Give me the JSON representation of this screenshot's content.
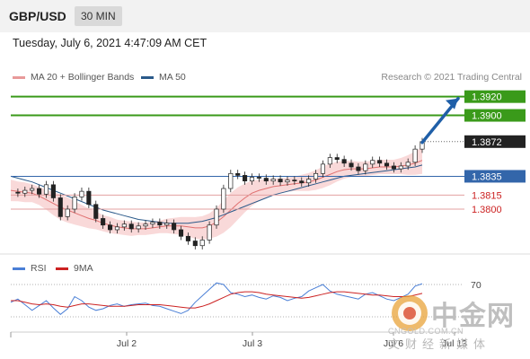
{
  "header": {
    "pair": "GBP/USD",
    "timeframe": "30 MIN"
  },
  "timestamp": "Tuesday, July 6, 2021 4:47:09 AM CET",
  "legend": {
    "ma20": "MA 20 + Bollinger Bands",
    "ma50": "MA 50"
  },
  "credit": "Research © 2021 Trading Central",
  "rsi_legend": {
    "rsi": "RSI",
    "ma9": "9MA"
  },
  "watermark": {
    "cn": "中金网",
    "en": "CNGOLD.COM.CN",
    "sub": "文财经新媒体"
  },
  "colors": {
    "resistance": "#3a9a1a",
    "support": "#3366aa",
    "support_minor": "#cc2222",
    "current": "#333333",
    "arrow": "#1f5fa8"
  },
  "chart_data": {
    "type": "candlestick",
    "x_ticks": [
      "Jul 2",
      "Jul 3",
      "Jul 6",
      "Jul 13"
    ],
    "levels": [
      {
        "value": 1.392,
        "label": "1.3920",
        "kind": "resistance"
      },
      {
        "value": 1.39,
        "label": "1.3900",
        "kind": "resistance"
      },
      {
        "value": 1.3872,
        "label": "1.3872",
        "kind": "current"
      },
      {
        "value": 1.3835,
        "label": "1.3835",
        "kind": "pivot"
      },
      {
        "value": 1.3815,
        "label": "1.3815",
        "kind": "support"
      },
      {
        "value": 1.38,
        "label": "1.3800",
        "kind": "support"
      }
    ],
    "price_path": [
      1.3818,
      1.3817,
      1.382,
      1.3822,
      1.3816,
      1.3826,
      1.3812,
      1.3792,
      1.38,
      1.3813,
      1.3819,
      1.3805,
      1.379,
      1.3783,
      1.3778,
      1.3781,
      1.3784,
      1.3779,
      1.3782,
      1.3784,
      1.3786,
      1.3783,
      1.3785,
      1.3778,
      1.3771,
      1.3766,
      1.3761,
      1.3767,
      1.3783,
      1.38,
      1.3822,
      1.3838,
      1.3836,
      1.383,
      1.3834,
      1.3833,
      1.383,
      1.3832,
      1.3829,
      1.3831,
      1.383,
      1.3828,
      1.3832,
      1.3838,
      1.3848,
      1.3855,
      1.3853,
      1.3849,
      1.3845,
      1.3841,
      1.3848,
      1.3852,
      1.3849,
      1.3846,
      1.3843,
      1.3846,
      1.385,
      1.3864,
      1.3872
    ],
    "ma20": [
      1.382,
      1.3819,
      1.3818,
      1.3817,
      1.3814,
      1.381,
      1.3806,
      1.3802,
      1.3799,
      1.3796,
      1.3793,
      1.379,
      1.3788,
      1.3785,
      1.3783,
      1.3781,
      1.378,
      1.3779,
      1.3779,
      1.3779,
      1.378,
      1.3781,
      1.3782,
      1.3782,
      1.3782,
      1.3781,
      1.378,
      1.378,
      1.3782,
      1.3786,
      1.3792,
      1.3799,
      1.3806,
      1.3812,
      1.3817,
      1.382,
      1.3822,
      1.3824,
      1.3825,
      1.3826,
      1.3827,
      1.3828,
      1.3829,
      1.3831,
      1.3834,
      1.3837,
      1.384,
      1.3842,
      1.3843,
      1.3843,
      1.3843,
      1.3844,
      1.3845,
      1.3845,
      1.3845,
      1.3846,
      1.3847,
      1.3849,
      1.3852
    ],
    "ma50": [
      1.3835,
      1.3833,
      1.3831,
      1.3829,
      1.3826,
      1.3823,
      1.382,
      1.3817,
      1.3814,
      1.3811,
      1.3808,
      1.3805,
      1.3802,
      1.3799,
      1.3797,
      1.3795,
      1.3793,
      1.3791,
      1.3789,
      1.3788,
      1.3787,
      1.3786,
      1.3785,
      1.3785,
      1.3785,
      1.3785,
      1.3786,
      1.3787,
      1.3789,
      1.3791,
      1.3794,
      1.3797,
      1.38,
      1.3803,
      1.3806,
      1.3809,
      1.3812,
      1.3815,
      1.3817,
      1.3819,
      1.3821,
      1.3823,
      1.3825,
      1.3827,
      1.3829,
      1.3831,
      1.3833,
      1.3835,
      1.3836,
      1.3837,
      1.3838,
      1.3839,
      1.384,
      1.3841,
      1.3842,
      1.3843,
      1.3844,
      1.3845,
      1.3847
    ],
    "bb_width": [
      12,
      11,
      11,
      10,
      10,
      11,
      13,
      14,
      14,
      13,
      12,
      11,
      10,
      9,
      9,
      8,
      8,
      8,
      7,
      7,
      7,
      7,
      8,
      9,
      10,
      11,
      12,
      13,
      14,
      16,
      18,
      19,
      18,
      16,
      14,
      12,
      10,
      9,
      8,
      8,
      8,
      9,
      10,
      11,
      12,
      12,
      11,
      10,
      9,
      8,
      8,
      8,
      8,
      8,
      8,
      9,
      11,
      13,
      15
    ],
    "rsi": {
      "level_70": "70",
      "rsi": [
        48,
        52,
        45,
        38,
        44,
        50,
        41,
        33,
        40,
        55,
        50,
        42,
        38,
        40,
        44,
        46,
        43,
        45,
        46,
        47,
        44,
        43,
        40,
        37,
        34,
        38,
        48,
        56,
        64,
        72,
        70,
        60,
        58,
        55,
        57,
        54,
        52,
        56,
        54,
        50,
        53,
        55,
        62,
        66,
        70,
        62,
        58,
        56,
        54,
        52,
        58,
        60,
        56,
        52,
        50,
        54,
        58,
        68,
        71
      ],
      "ma9": [
        50,
        50,
        48,
        46,
        45,
        46,
        45,
        43,
        42,
        44,
        46,
        46,
        45,
        44,
        43,
        43,
        43,
        44,
        45,
        45,
        45,
        45,
        44,
        43,
        42,
        41,
        41,
        43,
        46,
        50,
        54,
        58,
        60,
        61,
        61,
        60,
        58,
        57,
        56,
        55,
        54,
        53,
        54,
        56,
        58,
        60,
        61,
        61,
        60,
        59,
        58,
        57,
        57,
        56,
        55,
        55,
        55,
        57,
        59
      ]
    }
  }
}
